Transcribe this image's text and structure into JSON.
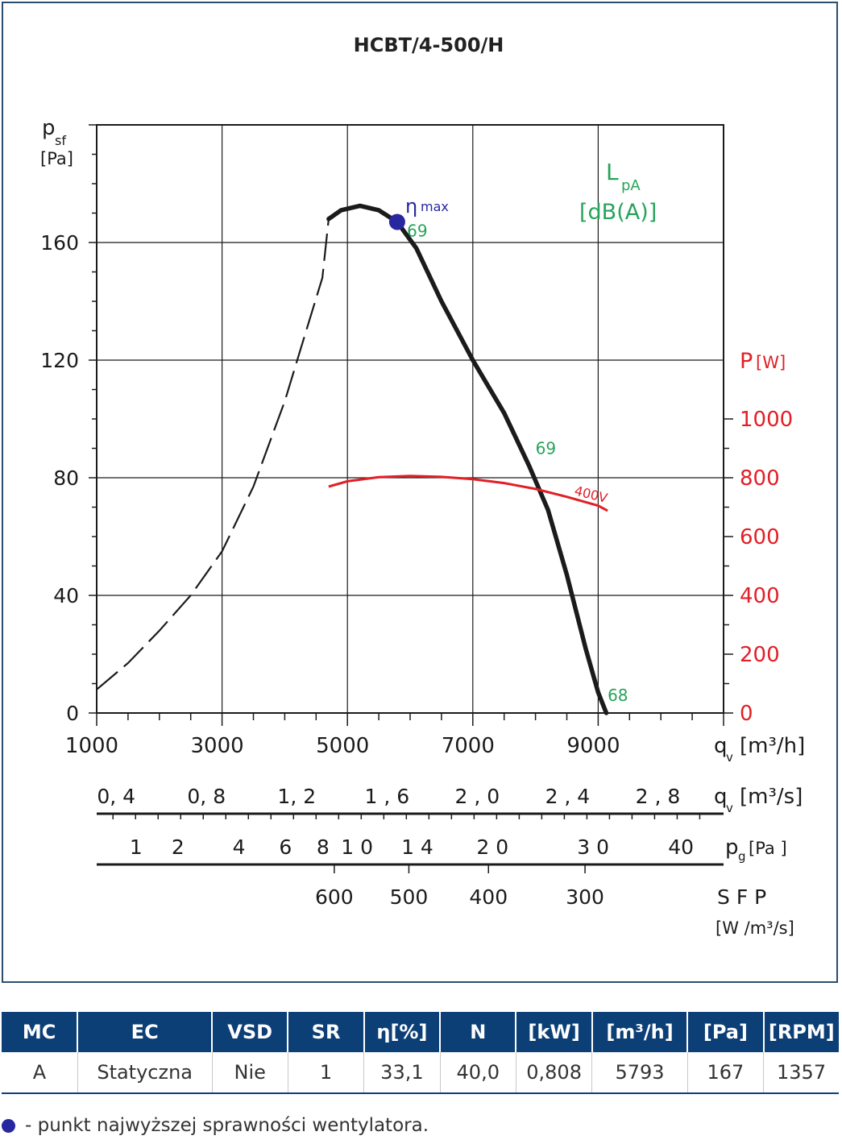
{
  "chart_data": {
    "type": "line",
    "title": "HCBT/4-500/H",
    "ylabel": "p",
    "ylabel_sub": "sf",
    "yunit": "[Pa]",
    "ylim": [
      0,
      200
    ],
    "yticks": [
      "0",
      "40",
      "80",
      "120",
      "160"
    ],
    "xlim": [
      1000,
      11000
    ],
    "xticks": [
      "1000",
      "3000",
      "5000",
      "7000",
      "9000"
    ],
    "xlabel": "q",
    "xlabel_sub": "v",
    "xunit": "[m³/h]",
    "grid": true,
    "power_axis": {
      "label": "P",
      "unit": "[W]",
      "ticks": [
        "0",
        "200",
        "400",
        "600",
        "800",
        "1000"
      ],
      "range": [
        0,
        1000
      ]
    },
    "lpa_label": {
      "main": "L",
      "sub": "pA",
      "unit": "[dB(A)]"
    },
    "series": [
      {
        "type": "pressure",
        "color": "#1b1b1b",
        "dashed_points": [
          [
            1000,
            8
          ],
          [
            1500,
            17
          ],
          [
            2000,
            28
          ],
          [
            2500,
            40
          ],
          [
            3000,
            55
          ],
          [
            3500,
            77
          ],
          [
            4000,
            106
          ],
          [
            4300,
            127
          ],
          [
            4600,
            148
          ],
          [
            4700,
            168
          ]
        ],
        "solid_points": [
          [
            4700,
            168
          ],
          [
            4900,
            171
          ],
          [
            5200,
            172.5
          ],
          [
            5500,
            171
          ],
          [
            5793,
            167
          ],
          [
            6100,
            158
          ],
          [
            6500,
            140
          ],
          [
            7000,
            120
          ],
          [
            7500,
            102
          ],
          [
            7900,
            84
          ],
          [
            8200,
            69
          ],
          [
            8500,
            47
          ],
          [
            8800,
            22
          ],
          [
            9000,
            7
          ],
          [
            9130,
            0
          ]
        ]
      },
      {
        "name": "400V",
        "type": "power",
        "color": "#e11f26",
        "points": [
          [
            4700,
            770
          ],
          [
            5000,
            788
          ],
          [
            5500,
            802
          ],
          [
            6000,
            806
          ],
          [
            6500,
            803
          ],
          [
            7000,
            795
          ],
          [
            7500,
            782
          ],
          [
            8000,
            762
          ],
          [
            8500,
            735
          ],
          [
            9000,
            705
          ],
          [
            9150,
            688
          ]
        ]
      }
    ],
    "eta_max": {
      "label": "η",
      "label_sup": "max",
      "x": 5793,
      "y": 167,
      "color": "#2727a0"
    },
    "lpa_values": [
      {
        "text": "69",
        "x": 5950,
        "y": 164
      },
      {
        "text": "69",
        "x": 8000,
        "y": 90
      },
      {
        "text": "68",
        "x": 9150,
        "y": 6
      }
    ],
    "aux_scales": [
      {
        "name": "qv_m3s",
        "label": "q",
        "label_sub": "v",
        "unit": "[m³/s]",
        "ticks": [
          {
            "label": "0, 4",
            "q": 1440
          },
          {
            "label": "0, 8",
            "q": 2880
          },
          {
            "label": "1, 2",
            "q": 4320
          },
          {
            "label": "1 , 6",
            "q": 5760
          },
          {
            "label": "2 , 0",
            "q": 7200
          },
          {
            "label": "2 , 4",
            "q": 8640
          },
          {
            "label": "2 , 8",
            "q": 10080
          }
        ]
      },
      {
        "name": "pg",
        "label": "p",
        "label_sub": "g",
        "unit": "[Pa ]",
        "ticks": [
          {
            "label": "1",
            "q": 1628
          },
          {
            "label": "2",
            "q": 2296
          },
          {
            "label": "4",
            "q": 3270
          },
          {
            "label": "6",
            "q": 4012
          },
          {
            "label": "8",
            "q": 4610
          },
          {
            "label": "1 0",
            "q": 5153
          },
          {
            "label": "1 4",
            "q": 6115
          },
          {
            "label": "2 0",
            "q": 7315
          },
          {
            "label": "3 0",
            "q": 8920
          },
          {
            "label": "40",
            "q": 10320
          }
        ]
      },
      {
        "name": "sfp",
        "label": "S F P",
        "unit": "[W /m³/s]",
        "ticks": [
          {
            "label": "600",
            "q": 4790
          },
          {
            "label": "500",
            "q": 5980
          },
          {
            "label": "400",
            "q": 7250
          },
          {
            "label": "300",
            "q": 8790
          }
        ]
      }
    ]
  },
  "table": {
    "headers": [
      "MC",
      "EC",
      "VSD",
      "SR",
      "η[%]",
      "N",
      "[kW]",
      "[m³/h]",
      "[Pa]",
      "[RPM]"
    ],
    "rows": [
      [
        "A",
        "Statyczna",
        "Nie",
        "1",
        "33,1",
        "40,0",
        "0,808",
        "5793",
        "167",
        "1357"
      ]
    ]
  },
  "legend_note": "- punkt najwyższej sprawności wentylatora."
}
